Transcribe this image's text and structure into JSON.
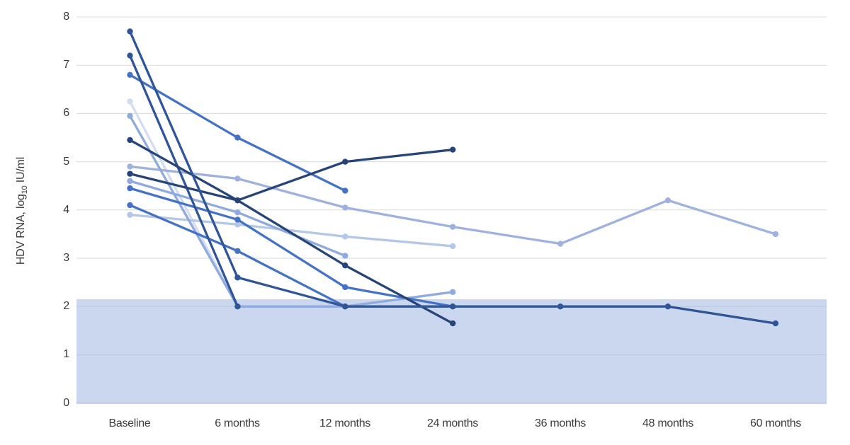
{
  "chart_data": {
    "type": "line",
    "title": "",
    "xlabel": "",
    "ylabel": "HDV RNA, log10 IU/ml",
    "ylabel_parts": {
      "prefix": "HDV RNA, log",
      "sub": "10",
      "suffix": " IU/ml"
    },
    "categories": [
      "Baseline",
      "6 months",
      "12 months",
      "24 months",
      "36 months",
      "48 months",
      "60 months"
    ],
    "y_ticks": [
      "0",
      "1",
      "2",
      "3",
      "4",
      "5",
      "6",
      "7",
      "8"
    ],
    "ylim": [
      0,
      8
    ],
    "grid": "horizontal",
    "legend": "none",
    "gridline_color": "#d9d9d9",
    "gridline_color_in_band": "#b9c7e4",
    "loq_band": {
      "from": 0,
      "to": 2.15,
      "color": "#cbd7ee",
      "label": "below-quantification shaded band"
    },
    "series": [
      {
        "name": "patient-bl-6-25",
        "color": "#d3ddf2",
        "values": [
          6.25,
          2.0,
          null,
          null,
          null,
          null,
          null
        ]
      },
      {
        "name": "patient-bl-3-9",
        "color": "#b4c7e7",
        "values": [
          3.9,
          3.7,
          3.45,
          3.25,
          null,
          null,
          null
        ]
      },
      {
        "name": "patient-bl-4-9",
        "color": "#9fb1df",
        "values": [
          4.9,
          4.65,
          4.05,
          3.65,
          3.3,
          4.2,
          3.5
        ]
      },
      {
        "name": "patient-bl-4-6",
        "color": "#8faadc",
        "values": [
          4.6,
          3.95,
          3.05,
          null,
          null,
          null,
          null
        ]
      },
      {
        "name": "patient-bl-5-95",
        "color": "#8faadc",
        "values": [
          5.95,
          2.0,
          2.0,
          2.3,
          null,
          null,
          null
        ]
      },
      {
        "name": "patient-bl-4-45",
        "color": "#4472c4",
        "values": [
          4.45,
          3.8,
          2.4,
          2.0,
          null,
          null,
          null
        ]
      },
      {
        "name": "patient-bl-4-1",
        "color": "#4472c4",
        "values": [
          4.1,
          3.15,
          2.0,
          null,
          null,
          null,
          null
        ]
      },
      {
        "name": "patient-bl-6-8",
        "color": "#4472c4",
        "values": [
          6.8,
          5.5,
          4.4,
          null,
          null,
          null,
          null
        ]
      },
      {
        "name": "patient-bl-7-2",
        "color": "#2f5597",
        "values": [
          7.2,
          2.0,
          null,
          null,
          null,
          null,
          null
        ]
      },
      {
        "name": "patient-bl-4-75",
        "color": "#264478",
        "values": [
          4.75,
          4.2,
          2.85,
          1.65,
          null,
          null,
          null
        ]
      },
      {
        "name": "patient-bl-5-45",
        "color": "#264478",
        "values": [
          5.45,
          4.2,
          5.0,
          5.25,
          null,
          null,
          null
        ]
      },
      {
        "name": "patient-bl-7-7",
        "color": "#2f5597",
        "values": [
          7.7,
          2.6,
          2.0,
          2.0,
          2.0,
          2.0,
          1.65
        ]
      }
    ]
  }
}
